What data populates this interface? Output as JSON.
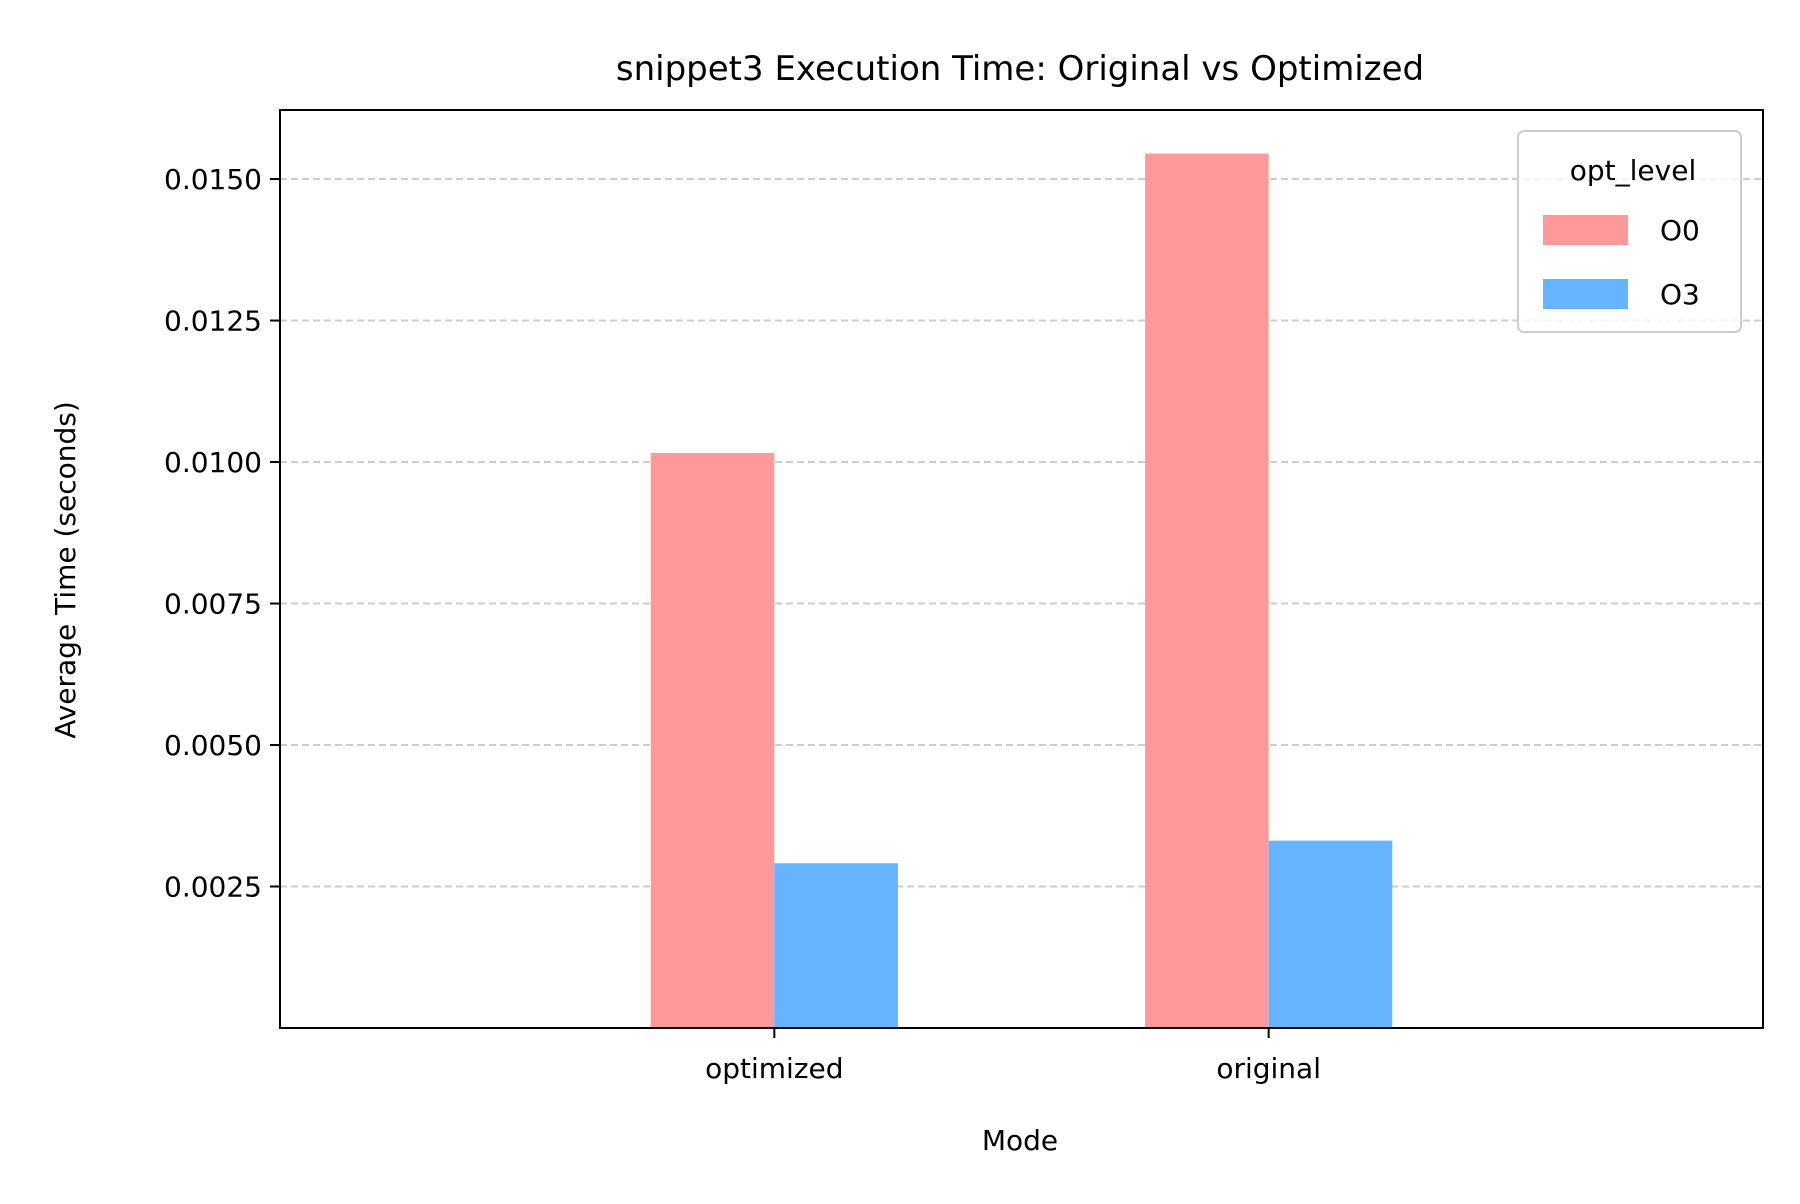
{
  "chart_data": {
    "type": "bar",
    "title": "snippet3 Execution Time: Original vs Optimized",
    "xlabel": "Mode",
    "ylabel": "Average Time (seconds)",
    "categories": [
      "optimized",
      "original"
    ],
    "series": [
      {
        "name": "O0",
        "values": [
          0.01016,
          0.01545
        ],
        "color": "#ff9999"
      },
      {
        "name": "O3",
        "values": [
          0.00291,
          0.00331
        ],
        "color": "#66b3ff"
      }
    ],
    "ylim": [
      0,
      0.01622
    ],
    "yticks": [
      0.0025,
      0.005,
      0.0075,
      0.01,
      0.0125,
      0.015
    ],
    "ytick_labels": [
      "0.0025",
      "0.0050",
      "0.0075",
      "0.0100",
      "0.0125",
      "0.0150"
    ],
    "grid": {
      "axis": "y",
      "style": "dashed",
      "color": "#cccccc"
    },
    "legend": {
      "title": "opt_level",
      "placement": "top-right"
    }
  }
}
